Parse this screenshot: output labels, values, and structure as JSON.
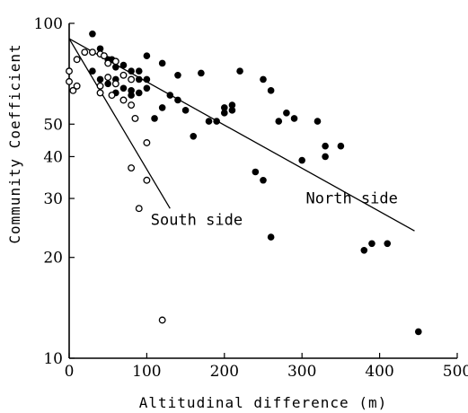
{
  "chart_data": {
    "type": "scatter",
    "title": "",
    "xlabel": "Altitudinal difference (m)",
    "ylabel": "Community Coefficient",
    "xlim": [
      0,
      500
    ],
    "ylim": [
      10,
      100
    ],
    "yscale": "log",
    "xticks": [
      0,
      100,
      200,
      300,
      400,
      500
    ],
    "yticks": [
      10,
      20,
      30,
      40,
      50,
      100
    ],
    "grid": false,
    "legend": "none",
    "series": [
      {
        "marker": "filled-circle",
        "color": "#000000",
        "points": [
          [
            30,
            93
          ],
          [
            40,
            84
          ],
          [
            45,
            80
          ],
          [
            50,
            78
          ],
          [
            55,
            78
          ],
          [
            60,
            74
          ],
          [
            70,
            75
          ],
          [
            80,
            72
          ],
          [
            90,
            72
          ],
          [
            100,
            80
          ],
          [
            30,
            72
          ],
          [
            40,
            68
          ],
          [
            50,
            66
          ],
          [
            60,
            68
          ],
          [
            70,
            64
          ],
          [
            80,
            63
          ],
          [
            90,
            68
          ],
          [
            100,
            68
          ],
          [
            120,
            76
          ],
          [
            140,
            70
          ],
          [
            60,
            62
          ],
          [
            70,
            59
          ],
          [
            80,
            61
          ],
          [
            90,
            62
          ],
          [
            100,
            64
          ],
          [
            110,
            52
          ],
          [
            120,
            56
          ],
          [
            130,
            61
          ],
          [
            140,
            59
          ],
          [
            150,
            55
          ],
          [
            160,
            46
          ],
          [
            170,
            71
          ],
          [
            180,
            51
          ],
          [
            190,
            51
          ],
          [
            200,
            54
          ],
          [
            210,
            57
          ],
          [
            220,
            72
          ],
          [
            240,
            36
          ],
          [
            250,
            68
          ],
          [
            260,
            63
          ],
          [
            200,
            56
          ],
          [
            210,
            55
          ],
          [
            250,
            34
          ],
          [
            260,
            23
          ],
          [
            270,
            51
          ],
          [
            280,
            54
          ],
          [
            290,
            52
          ],
          [
            300,
            39
          ],
          [
            320,
            51
          ],
          [
            330,
            43
          ],
          [
            330,
            40
          ],
          [
            350,
            43
          ],
          [
            380,
            21
          ],
          [
            390,
            22
          ],
          [
            410,
            22
          ],
          [
            450,
            12
          ]
        ]
      },
      {
        "marker": "open-circle",
        "color": "#000000",
        "points": [
          [
            0,
            72
          ],
          [
            10,
            78
          ],
          [
            20,
            82
          ],
          [
            30,
            82
          ],
          [
            40,
            81
          ],
          [
            45,
            80
          ],
          [
            50,
            76
          ],
          [
            60,
            77
          ],
          [
            70,
            70
          ],
          [
            80,
            68
          ],
          [
            0,
            67
          ],
          [
            5,
            63
          ],
          [
            10,
            65
          ],
          [
            40,
            65
          ],
          [
            50,
            69
          ],
          [
            55,
            61
          ],
          [
            60,
            66
          ],
          [
            70,
            59
          ],
          [
            80,
            57
          ],
          [
            85,
            52
          ],
          [
            40,
            62
          ],
          [
            100,
            44
          ],
          [
            100,
            34
          ],
          [
            80,
            37
          ],
          [
            90,
            28
          ],
          [
            120,
            13
          ]
        ]
      }
    ],
    "trend_lines": [
      {
        "label": "North side",
        "from": [
          0,
          90
        ],
        "to": [
          445,
          24
        ]
      },
      {
        "label": "South side",
        "from": [
          0,
          90
        ],
        "to": [
          130,
          28
        ]
      }
    ],
    "annotations": [
      {
        "text": "North side",
        "x": 305,
        "y": 29
      },
      {
        "text": "South side",
        "x": 105,
        "y": 25
      }
    ]
  }
}
